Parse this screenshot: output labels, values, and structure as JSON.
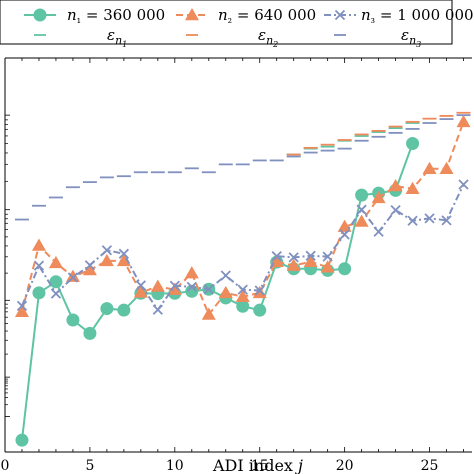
{
  "chart_data": {
    "type": "line",
    "xlabel": "ADI index j",
    "xlim": [
      0,
      27.5
    ],
    "ylim": [
      0,
      1
    ],
    "xticks": [
      0,
      5,
      10,
      15,
      20,
      25
    ],
    "y_scale": "log",
    "grid": false,
    "legend_position": "top",
    "series": [
      {
        "name": "n₁ = 360 000",
        "color": "#5fc4a3",
        "style": "solid",
        "marker": "circle",
        "x": [
          1,
          2,
          3,
          4,
          5,
          6,
          7,
          8,
          9,
          10,
          11,
          12,
          13,
          14,
          15,
          16,
          17,
          18,
          19,
          20,
          21,
          22,
          23,
          24
        ],
        "y": [
          0.03,
          0.404,
          0.432,
          0.335,
          0.301,
          0.364,
          0.36,
          0.403,
          0.402,
          0.403,
          0.408,
          0.413,
          0.391,
          0.37,
          0.36,
          0.482,
          0.465,
          0.465,
          0.461,
          0.465,
          0.652,
          0.657,
          0.664,
          0.783
        ]
      },
      {
        "name": "n₂ = 640 000",
        "color": "#ef8a5b",
        "style": "dashed",
        "marker": "triangle",
        "x": [
          1,
          2,
          3,
          4,
          5,
          6,
          7,
          8,
          9,
          10,
          11,
          12,
          13,
          14,
          15,
          16,
          17,
          18,
          19,
          20,
          21,
          22,
          23,
          24,
          25,
          26,
          27
        ],
        "y": [
          0.356,
          0.524,
          0.48,
          0.445,
          0.462,
          0.485,
          0.485,
          0.405,
          0.42,
          0.412,
          0.454,
          0.349,
          0.404,
          0.394,
          0.404,
          0.483,
          0.473,
          0.483,
          0.469,
          0.572,
          0.585,
          0.645,
          0.675,
          0.668,
          0.719,
          0.719,
          0.838
        ]
      },
      {
        "name": "n₃ = 1 000 000",
        "color": "#8090bf",
        "style": "dashdot",
        "marker": "x",
        "x": [
          1,
          2,
          3,
          4,
          5,
          6,
          7,
          8,
          9,
          10,
          11,
          12,
          13,
          14,
          15,
          16,
          17,
          18,
          19,
          20,
          21,
          22,
          23,
          24,
          25,
          26,
          27
        ],
        "y": [
          0.371,
          0.473,
          0.402,
          0.443,
          0.474,
          0.512,
          0.503,
          0.423,
          0.361,
          0.422,
          0.419,
          0.413,
          0.448,
          0.412,
          0.41,
          0.497,
          0.494,
          0.498,
          0.496,
          0.552,
          0.615,
          0.559,
          0.614,
          0.587,
          0.593,
          0.588,
          0.679
        ]
      }
    ],
    "epsilon_series": [
      {
        "name": "ε_{n₁}",
        "label_main": "ε",
        "label_sub": "n",
        "label_subsub": "1",
        "color": "#5fc4a3",
        "x": [
          17,
          18,
          19,
          20,
          21,
          22,
          23,
          24
        ],
        "y": [
          0.755,
          0.77,
          0.775,
          0.79,
          0.802,
          0.812,
          0.822,
          0.835
        ]
      },
      {
        "name": "ε_{n₂}",
        "label_main": "ε",
        "label_sub": "n",
        "label_subsub": "2",
        "color": "#ef8a5b",
        "x": [
          17,
          18,
          19,
          20,
          21,
          22,
          23,
          24,
          25,
          26,
          27
        ],
        "y": [
          0.755,
          0.772,
          0.78,
          0.792,
          0.806,
          0.815,
          0.826,
          0.838,
          0.846,
          0.853,
          0.861
        ]
      },
      {
        "name": "ε_{n₃}",
        "label_main": "ε",
        "label_sub": "n",
        "label_subsub": "3",
        "color": "#8090bf",
        "x": [
          1,
          2,
          3,
          4,
          5,
          6,
          7,
          8,
          9,
          10,
          11,
          12,
          13,
          14,
          15,
          16,
          17,
          18,
          19,
          20,
          21,
          22,
          23,
          24,
          25,
          26,
          27
        ],
        "y": [
          0.59,
          0.625,
          0.646,
          0.672,
          0.685,
          0.697,
          0.7,
          0.71,
          0.71,
          0.71,
          0.72,
          0.71,
          0.73,
          0.73,
          0.74,
          0.74,
          0.75,
          0.76,
          0.765,
          0.77,
          0.79,
          0.8,
          0.81,
          0.82,
          0.835,
          0.845,
          0.855
        ]
      }
    ]
  }
}
